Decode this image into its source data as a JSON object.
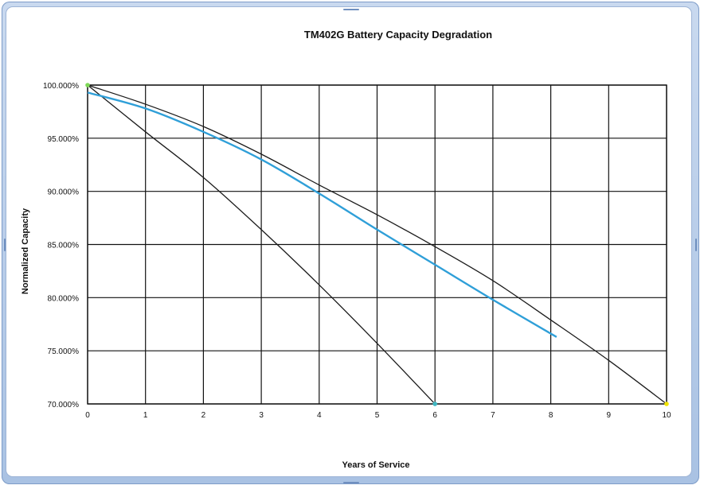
{
  "chart_data": {
    "type": "line",
    "title": "TM402G Battery Capacity Degradation",
    "xlabel": "Years of Service",
    "ylabel": "Normalized Capacity",
    "xlim": [
      0,
      10
    ],
    "ylim": [
      70,
      100
    ],
    "xticks": [
      "0",
      "1",
      "2",
      "3",
      "4",
      "5",
      "6",
      "7",
      "8",
      "9",
      "10"
    ],
    "yticks": [
      "70.000%",
      "75.000%",
      "80.000%",
      "85.000%",
      "90.000%",
      "95.000%",
      "100.000%"
    ],
    "grid": true,
    "series": [
      {
        "color": "#1b1b1b",
        "points": [
          [
            0,
            100
          ],
          [
            1,
            98.2
          ],
          [
            2,
            96.1
          ],
          [
            3,
            93.5
          ],
          [
            4,
            90.6
          ],
          [
            5,
            87.8
          ],
          [
            6,
            84.8
          ],
          [
            7,
            81.6
          ],
          [
            8,
            77.9
          ],
          [
            9,
            74.1
          ],
          [
            10,
            70
          ]
        ]
      },
      {
        "color": "#1b1b1b",
        "points": [
          [
            0,
            100
          ],
          [
            1,
            95.6
          ],
          [
            2,
            91.3
          ],
          [
            3,
            86.4
          ],
          [
            4,
            81.2
          ],
          [
            5,
            75.7
          ],
          [
            6,
            70
          ]
        ]
      },
      {
        "color": "#2f9fd8",
        "points": [
          [
            0,
            99.3
          ],
          [
            1,
            97.8
          ],
          [
            2,
            95.6
          ],
          [
            3,
            93.0
          ],
          [
            4,
            89.8
          ],
          [
            5,
            86.4
          ],
          [
            6,
            83.1
          ],
          [
            7,
            79.8
          ],
          [
            8.1,
            76.3
          ]
        ]
      }
    ],
    "markers": [
      {
        "x": 0,
        "y": 100,
        "color": "#7ed957"
      },
      {
        "x": 6,
        "y": 70,
        "color": "#3fb7c2"
      },
      {
        "x": 10,
        "y": 70,
        "color": "#f2e400"
      }
    ]
  }
}
